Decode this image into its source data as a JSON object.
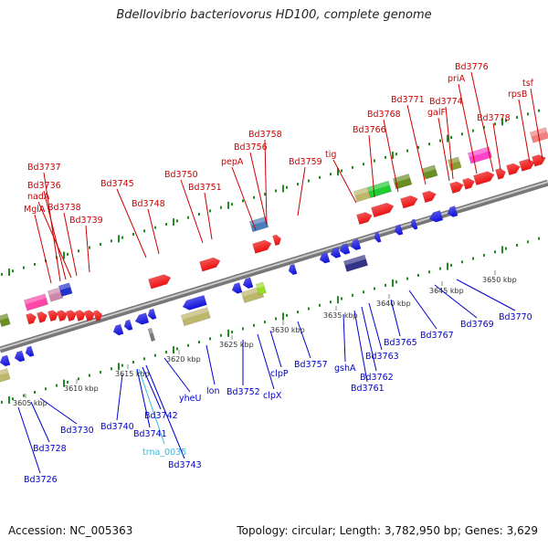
{
  "title": "Bdellovibrio bacteriovorus HD100, complete genome",
  "footer": {
    "accession": "Accession: NC_005363",
    "stats": "Topology: circular; Length: 3,782,950 bp; Genes: 3,629"
  },
  "colors": {
    "forward_label": "#cc0000",
    "reverse_label": "#0000cc",
    "rna_label": "#33bbdd",
    "forward_gene": "#ee1111",
    "reverse_gene": "#1111dd",
    "backbone": "#999999",
    "tick": "#228b22"
  },
  "scale_labels": [
    "3605 kbp",
    "3610 kbp",
    "3615 kbp",
    "3620 kbp",
    "3625 kbp",
    "3630 kbp",
    "3635 kbp",
    "3640 kbp",
    "3645 kbp",
    "3650 kbp"
  ],
  "forward_labels": [
    "MglA",
    "Bd3737",
    "Bd3736",
    "nadA",
    "Bd3738",
    "Bd3739",
    "Bd3745",
    "Bd3748",
    "Bd3750",
    "Bd3751",
    "pepA",
    "Bd3758",
    "Bd3756",
    "Bd3759",
    "tig",
    "Bd3766",
    "Bd3768",
    "Bd3771",
    "Bd3774",
    "galF",
    "priA",
    "Bd3776",
    "Bd3778",
    "rpsB",
    "tsf"
  ],
  "reverse_labels": [
    "Bd3726",
    "Bd3728",
    "Bd3730",
    "Bd3740",
    "Bd3741",
    "Bd3742",
    "Bd3743",
    "yheU",
    "lon",
    "Bd3752",
    "clpX",
    "clpP",
    "Bd3757",
    "gshA",
    "Bd3761",
    "Bd3762",
    "Bd3763",
    "Bd3765",
    "Bd3767",
    "Bd3769",
    "Bd3770"
  ],
  "rna_labels": [
    "trna_0035"
  ]
}
